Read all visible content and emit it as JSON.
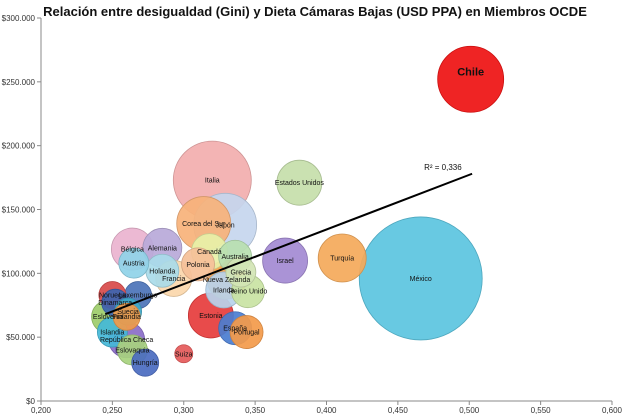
{
  "chart_data": {
    "type": "bubble",
    "title": "Relación entre desigualdad (Gini) y Dieta Cámaras Bajas (USD PPA) en Miembros OCDE",
    "xlim": [
      0.2,
      0.6
    ],
    "ylim": [
      0,
      300000
    ],
    "x_ticks": [
      {
        "value": 0.2,
        "label": "0,200"
      },
      {
        "value": 0.25,
        "label": "0,250"
      },
      {
        "value": 0.3,
        "label": "0,300"
      },
      {
        "value": 0.35,
        "label": "0,350"
      },
      {
        "value": 0.4,
        "label": "0,400"
      },
      {
        "value": 0.45,
        "label": "0,450"
      },
      {
        "value": 0.5,
        "label": "0,500"
      },
      {
        "value": 0.55,
        "label": "0,550"
      },
      {
        "value": 0.6,
        "label": "0,600"
      }
    ],
    "y_ticks": [
      {
        "value": 0,
        "label": "$0"
      },
      {
        "value": 50000,
        "label": "$50.000"
      },
      {
        "value": 100000,
        "label": "$100.000"
      },
      {
        "value": 150000,
        "label": "$150.000"
      },
      {
        "value": 200000,
        "label": "$200.000"
      },
      {
        "value": 250000,
        "label": "$250.000"
      },
      {
        "value": 300000,
        "label": "$300.000"
      }
    ],
    "grid": false,
    "trendline": {
      "x": [
        0.245,
        0.502
      ],
      "y": [
        68000,
        178000
      ],
      "label": "R² = 0,336"
    },
    "points": [
      {
        "name": "Chile",
        "x": 0.501,
        "y": 252000,
        "size": 2.2,
        "color": "#ee1111"
      },
      {
        "name": "México",
        "x": 0.466,
        "y": 96000,
        "size": 4.1,
        "color": "#5bc4e0"
      },
      {
        "name": "Italia",
        "x": 0.32,
        "y": 173000,
        "size": 2.6,
        "color": "#f2aeae"
      },
      {
        "name": "Estados Unidos",
        "x": 0.381,
        "y": 171000,
        "size": 1.5,
        "color": "#c6deaa"
      },
      {
        "name": "Japón",
        "x": 0.329,
        "y": 138000,
        "size": 2.1,
        "color": "#c5d6ee"
      },
      {
        "name": "Corea del Sur",
        "x": 0.314,
        "y": 139000,
        "size": 1.8,
        "color": "#f7b27a"
      },
      {
        "name": "Bélgica",
        "x": 0.264,
        "y": 119000,
        "size": 1.4,
        "color": "#eab3cf"
      },
      {
        "name": "Alemania",
        "x": 0.285,
        "y": 120000,
        "size": 1.3,
        "color": "#b9a9d9"
      },
      {
        "name": "Canadá",
        "x": 0.318,
        "y": 117000,
        "size": 1.2,
        "color": "#e7f1a8"
      },
      {
        "name": "Australia",
        "x": 0.336,
        "y": 113000,
        "size": 1.1,
        "color": "#b8e0b0"
      },
      {
        "name": "Austria",
        "x": 0.265,
        "y": 108000,
        "size": 1.0,
        "color": "#8fd3e8"
      },
      {
        "name": "Polonia",
        "x": 0.31,
        "y": 107000,
        "size": 1.1,
        "color": "#f5c098"
      },
      {
        "name": "Holanda",
        "x": 0.285,
        "y": 102000,
        "size": 1.1,
        "color": "#a9dbe9"
      },
      {
        "name": "Francia",
        "x": 0.293,
        "y": 96000,
        "size": 1.2,
        "color": "#fbd7ab"
      },
      {
        "name": "Nueva Zelanda",
        "x": 0.33,
        "y": 95000,
        "size": 1.3,
        "color": "#f3a148"
      },
      {
        "name": "Grecia",
        "x": 0.34,
        "y": 101000,
        "size": 1.0,
        "color": "#d2e5b5"
      },
      {
        "name": "Israel",
        "x": 0.371,
        "y": 110000,
        "size": 1.5,
        "color": "#a38ad2"
      },
      {
        "name": "Turquía",
        "x": 0.411,
        "y": 112000,
        "size": 1.6,
        "color": "#f4a95a"
      },
      {
        "name": "Irlanda",
        "x": 0.328,
        "y": 87000,
        "size": 1.2,
        "color": "#b7d3ec"
      },
      {
        "name": "Reino Unido",
        "x": 0.345,
        "y": 86000,
        "size": 1.1,
        "color": "#c9e3a3"
      },
      {
        "name": "Luxemburgo",
        "x": 0.268,
        "y": 83000,
        "size": 0.9,
        "color": "#4b73b8"
      },
      {
        "name": "Noruega",
        "x": 0.25,
        "y": 83000,
        "size": 0.9,
        "color": "#d84a4a"
      },
      {
        "name": "Dinamarca",
        "x": 0.252,
        "y": 77000,
        "size": 0.9,
        "color": "#3c64b0"
      },
      {
        "name": "Suecia",
        "x": 0.261,
        "y": 70000,
        "size": 0.9,
        "color": "#3ea8c8"
      },
      {
        "name": "Finlandia",
        "x": 0.26,
        "y": 66000,
        "size": 0.9,
        "color": "#f09a4a"
      },
      {
        "name": "Eslovenia",
        "x": 0.247,
        "y": 66000,
        "size": 1.1,
        "color": "#9dcc6a"
      },
      {
        "name": "Estonia",
        "x": 0.319,
        "y": 67000,
        "size": 1.5,
        "color": "#e63c3c"
      },
      {
        "name": "España",
        "x": 0.336,
        "y": 57000,
        "size": 1.1,
        "color": "#4a7dd0"
      },
      {
        "name": "Portugal",
        "x": 0.344,
        "y": 54000,
        "size": 1.1,
        "color": "#f39a4a"
      },
      {
        "name": "Islandia",
        "x": 0.25,
        "y": 54000,
        "size": 1.0,
        "color": "#44b8d8"
      },
      {
        "name": "República Checa",
        "x": 0.26,
        "y": 48000,
        "size": 1.2,
        "color": "#8a6cc8"
      },
      {
        "name": "Eslovaquia",
        "x": 0.264,
        "y": 40000,
        "size": 1.0,
        "color": "#a7d37e"
      },
      {
        "name": "Hungría",
        "x": 0.273,
        "y": 30000,
        "size": 0.9,
        "color": "#4a6bc0"
      },
      {
        "name": "Suiza",
        "x": 0.3,
        "y": 37000,
        "size": 0.6,
        "color": "#e55a5a"
      }
    ]
  }
}
